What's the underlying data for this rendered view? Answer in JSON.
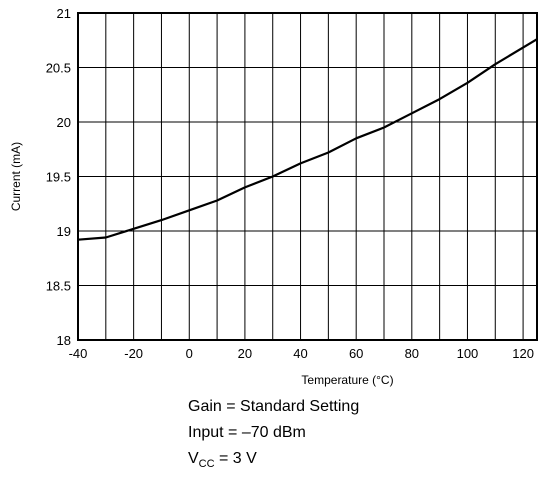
{
  "chart_data": {
    "type": "line",
    "xlabel": "Temperature (°C)",
    "ylabel": "Current (mA)",
    "xlim": [
      -40,
      125
    ],
    "ylim": [
      18,
      21
    ],
    "x_ticks": [
      -40,
      -20,
      0,
      20,
      40,
      60,
      80,
      100,
      120
    ],
    "x_tick_labels": [
      "-40",
      "-20",
      "0",
      "20",
      "40",
      "60",
      "80",
      "100",
      "120"
    ],
    "y_ticks": [
      18,
      18.5,
      19,
      19.5,
      20,
      20.5,
      21
    ],
    "y_tick_labels": [
      "18",
      "18.5",
      "19",
      "19.5",
      "20",
      "20.5",
      "21"
    ],
    "grid": true,
    "series": [
      {
        "x": [
          -40,
          -30,
          -20,
          -10,
          0,
          10,
          20,
          30,
          40,
          50,
          60,
          70,
          80,
          90,
          100,
          110,
          125
        ],
        "y": [
          18.92,
          18.94,
          19.02,
          19.1,
          19.19,
          19.28,
          19.4,
          19.5,
          19.62,
          19.72,
          19.85,
          19.95,
          20.08,
          20.21,
          20.36,
          20.53,
          20.76
        ]
      }
    ],
    "color": "#000000"
  },
  "notes": {
    "gain": "Gain = Standard Setting",
    "input": "Input = –70 dBm",
    "vcc_main": "V",
    "vcc_sub": "CC",
    "vcc_value": " = 3 V"
  }
}
